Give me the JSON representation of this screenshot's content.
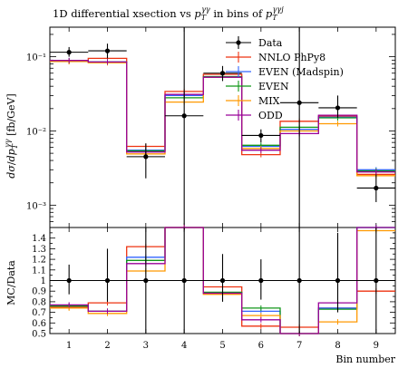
{
  "title": {
    "prefix": "1D differential xsection vs ",
    "p1_base": "p",
    "p1_sub": "T",
    "p1_sup": "γγ",
    "middle": " in bins of ",
    "p2_base": "p",
    "p2_sub": "T",
    "p2_sup": "γγj"
  },
  "ylabel_top": {
    "d1": "dσ",
    "slash": "/",
    "d2": "dp",
    "d2_sub": "T",
    "d2_sup": "γγ",
    "unit": " [fb/GeV]"
  },
  "ylabel_bottom": "MC/Data",
  "xlabel": "Bin number",
  "colors": {
    "Data": "#000000",
    "NNLO PhPy8": "#ee3311",
    "EVEN (Madspin)": "#3366ff",
    "EVEN": "#109618",
    "MIX": "#ff9900",
    "ODD": "#990099"
  },
  "chart_data": [
    {
      "type": "line",
      "panel": "main",
      "yscale": "log",
      "xlim": [
        0.5,
        9.5
      ],
      "ylim": [
        0.0005,
        0.25
      ],
      "x_ticks": [
        1,
        2,
        3,
        4,
        5,
        6,
        7,
        8,
        9
      ],
      "y_ticks": [
        {
          "value": 0.1,
          "label": "10⁻¹"
        },
        {
          "value": 0.01,
          "label": "10⁻²"
        },
        {
          "value": 0.001,
          "label": "10⁻³"
        }
      ],
      "bins": [
        [
          0.5,
          1.5
        ],
        [
          1.5,
          2.5
        ],
        [
          2.5,
          3.5
        ],
        [
          3.5,
          4.5
        ],
        [
          4.5,
          5.5
        ],
        [
          5.5,
          6.5
        ],
        [
          6.5,
          7.5
        ],
        [
          7.5,
          8.5
        ],
        [
          8.5,
          9.5
        ]
      ],
      "data": {
        "name": "Data",
        "x": [
          1,
          2,
          3,
          4,
          5,
          6,
          7,
          8,
          9
        ],
        "y": [
          0.115,
          0.12,
          0.0045,
          0.016,
          0.06,
          0.0087,
          0.024,
          0.0205,
          0.0017
        ],
        "err_up": [
          0.135,
          0.15,
          0.0068,
          0.3,
          0.075,
          0.0105,
          0.3,
          0.03,
          0.0026
        ],
        "err_down": [
          0.1,
          0.095,
          0.0023,
          0.0003,
          0.047,
          0.007,
          0.0003,
          0.015,
          0.0011
        ]
      },
      "series": [
        {
          "name": "NNLO PhPy8",
          "values": [
            0.086,
            0.095,
            0.0062,
            0.034,
            0.058,
            0.0048,
            0.0135,
            0.0158,
            0.0026
          ]
        },
        {
          "name": "EVEN (Madspin)",
          "values": [
            0.088,
            0.085,
            0.0055,
            0.03,
            0.053,
            0.0062,
            0.0105,
            0.0153,
            0.003
          ]
        },
        {
          "name": "EVEN",
          "values": [
            0.088,
            0.085,
            0.0054,
            0.028,
            0.054,
            0.0064,
            0.0112,
            0.015,
            0.0029
          ]
        },
        {
          "name": "MIX",
          "values": [
            0.086,
            0.083,
            0.0049,
            0.0245,
            0.053,
            0.0058,
            0.01,
            0.0125,
            0.0025
          ]
        },
        {
          "name": "ODD",
          "values": [
            0.089,
            0.085,
            0.0052,
            0.031,
            0.053,
            0.0055,
            0.0092,
            0.0163,
            0.0028
          ]
        }
      ],
      "legend": {
        "position": "top-right",
        "entries": [
          "Data",
          "NNLO PhPy8",
          "EVEN (Madspin)",
          "EVEN",
          "MIX",
          "ODD"
        ]
      }
    },
    {
      "type": "line",
      "panel": "ratio",
      "ylim": [
        0.5,
        1.5
      ],
      "y_ticks": [
        0.5,
        0.6,
        0.7,
        0.8,
        0.9,
        1,
        1.1,
        1.2,
        1.3,
        1.4
      ],
      "x_ticks": [
        1,
        2,
        3,
        4,
        5,
        6,
        7,
        8,
        9
      ],
      "data_band": {
        "name": "Data",
        "err_up": [
          1.15,
          1.3,
          1.5,
          1.5,
          1.25,
          1.2,
          1.5,
          1.45,
          1.5
        ],
        "err_down": [
          0.87,
          0.8,
          0.5,
          0.5,
          0.8,
          0.82,
          0.5,
          0.7,
          0.5
        ]
      },
      "series": [
        {
          "name": "NNLO PhPy8",
          "values": [
            0.75,
            0.79,
            1.32,
            1.5,
            0.94,
            0.57,
            0.56,
            0.74,
            0.9
          ]
        },
        {
          "name": "EVEN (Madspin)",
          "values": [
            0.76,
            0.71,
            1.22,
            1.5,
            0.88,
            0.71,
            0.44,
            0.74,
            1.5
          ]
        },
        {
          "name": "EVEN",
          "values": [
            0.76,
            0.71,
            1.19,
            1.5,
            0.89,
            0.74,
            0.47,
            0.73,
            1.5
          ]
        },
        {
          "name": "MIX",
          "values": [
            0.74,
            0.69,
            1.09,
            1.5,
            0.87,
            0.67,
            0.42,
            0.61,
            1.47
          ]
        },
        {
          "name": "ODD",
          "values": [
            0.77,
            0.71,
            1.16,
            1.5,
            0.88,
            0.63,
            0.38,
            0.79,
            1.5
          ]
        }
      ]
    }
  ]
}
